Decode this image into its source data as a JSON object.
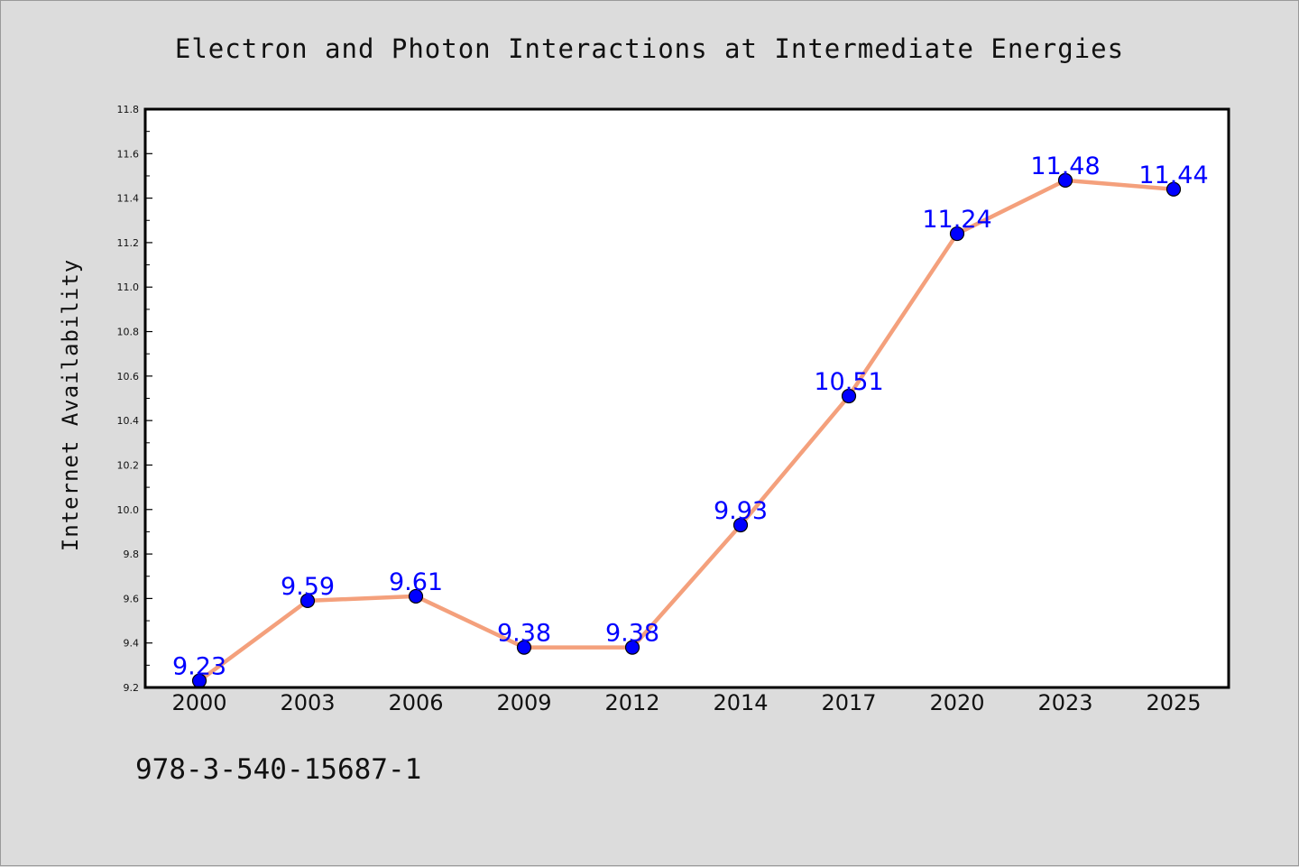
{
  "chart_data": {
    "type": "line",
    "title": "Electron and Photon Interactions at Intermediate Energies",
    "xlabel": "",
    "ylabel": "Internet Availability",
    "categories": [
      "2000",
      "2003",
      "2006",
      "2009",
      "2012",
      "2014",
      "2017",
      "2020",
      "2023",
      "2025"
    ],
    "series": [
      {
        "values": [
          9.23,
          9.59,
          9.61,
          9.38,
          9.38,
          9.93,
          10.51,
          11.24,
          11.48,
          11.44
        ],
        "labels": [
          "9.23",
          "9.59",
          "9.61",
          "9.38",
          "9.38",
          "9.93",
          "10.51",
          "11.24",
          "11.48",
          "11.44"
        ],
        "line_color": "#f4a07c",
        "marker_color": "#0000ff",
        "label_color": "#0000ff"
      }
    ],
    "ylim": [
      9.2,
      11.8
    ],
    "yticks": [
      "9.2",
      "9.4",
      "9.6",
      "9.8",
      "10.0",
      "10.2",
      "10.4",
      "10.6",
      "10.8",
      "11.0",
      "11.2",
      "11.4",
      "11.6",
      "11.8"
    ],
    "grid": false,
    "legend": "none"
  },
  "footer": {
    "isbn": "978-3-540-15687-1"
  }
}
